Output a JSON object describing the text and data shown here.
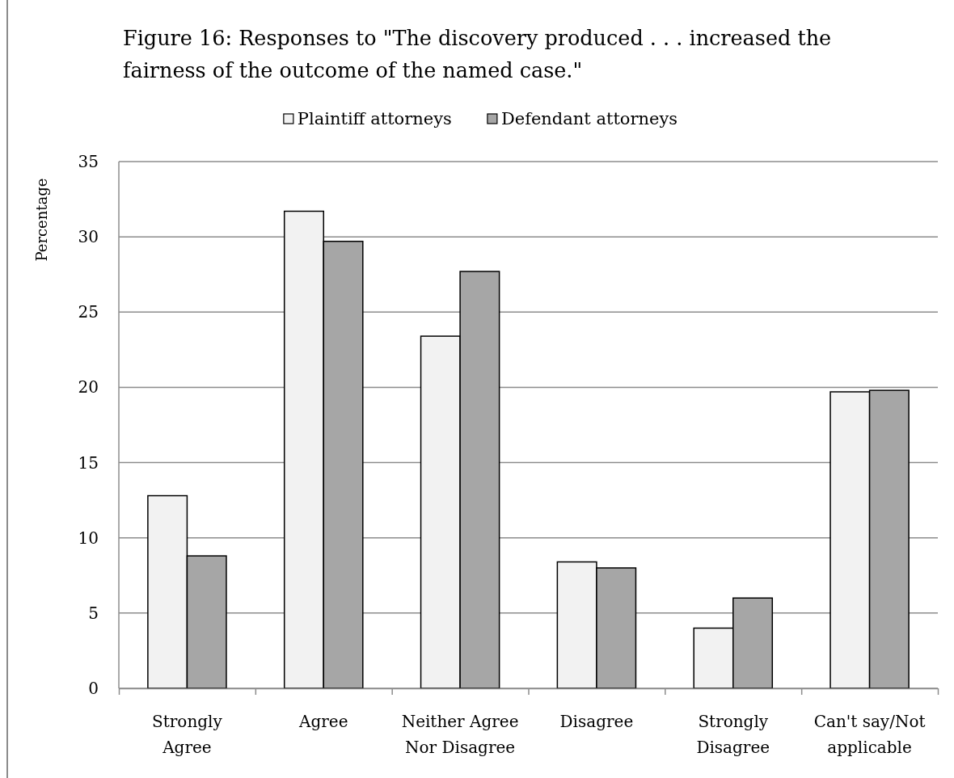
{
  "chart_data": {
    "type": "bar",
    "title": "Figure 16: Responses to \"The discovery produced . . . increased the fairness of the outcome of the named case.\"",
    "ylabel": "Percentage",
    "categories": [
      "Strongly Agree",
      "Agree",
      "Neither Agree Nor Disagree",
      "Disagree",
      "Strongly Disagree",
      "Can't say/Not applicable"
    ],
    "series": [
      {
        "name": "Plaintiff attorneys",
        "color": "#f2f2f2",
        "values": [
          12.8,
          31.7,
          23.4,
          8.4,
          4.0,
          19.7
        ]
      },
      {
        "name": "Defendant attorneys",
        "color": "#a6a6a6",
        "values": [
          8.8,
          29.7,
          27.7,
          8.0,
          6.0,
          19.8
        ]
      }
    ],
    "ylim": [
      0,
      35
    ],
    "yticks": [
      0,
      5,
      10,
      15,
      20,
      25,
      30,
      35
    ],
    "grid": "y",
    "legend": "top"
  }
}
